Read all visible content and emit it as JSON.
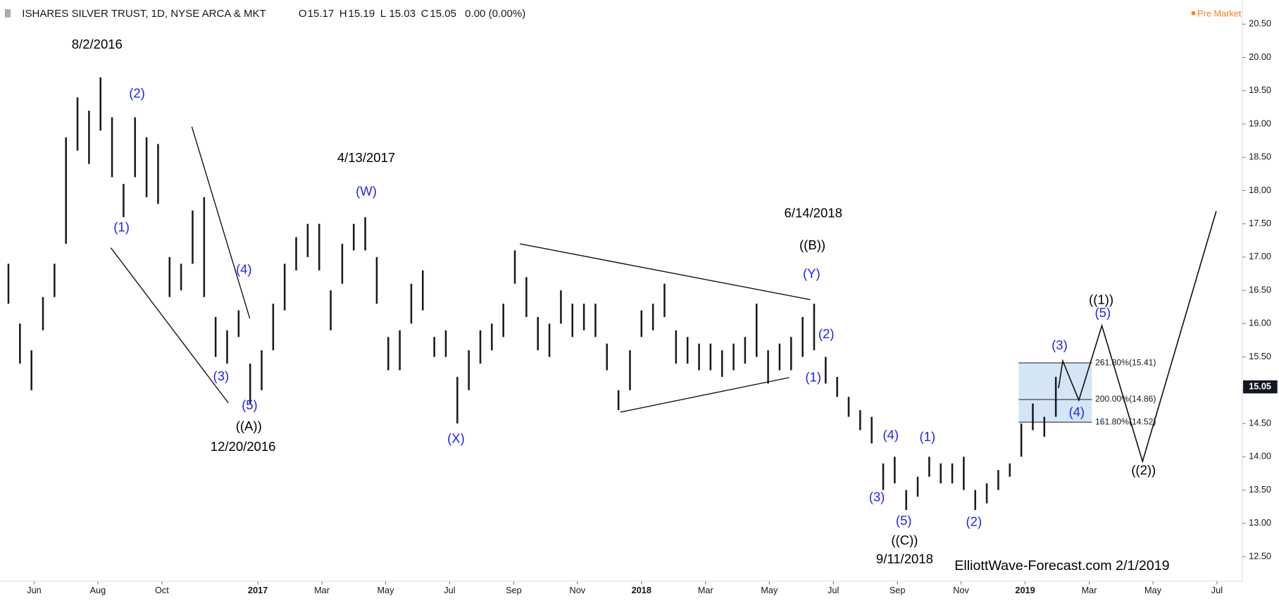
{
  "header": {
    "symbol": "ISHARES SILVER TRUST, 1D, NYSE ARCA & MKT",
    "ohlc": [
      {
        "label": "O",
        "value": 15.17
      },
      {
        "label": "H",
        "value": 15.19
      },
      {
        "label": "L",
        "value": 15.03
      },
      {
        "label": "C",
        "value": 15.05
      }
    ],
    "change": "0.00 (0.00%)",
    "status": "Pre Market"
  },
  "chart_data": {
    "type": "ohlc",
    "color": "#1a1a1a",
    "x": [
      2016.35,
      2016.38,
      2016.41,
      2016.44,
      2016.47,
      2016.5,
      2016.53,
      2016.56,
      2016.59,
      2016.62,
      2016.65,
      2016.68,
      2016.71,
      2016.74,
      2016.77,
      2016.8,
      2016.83,
      2016.86,
      2016.89,
      2016.92,
      2016.95,
      2016.98,
      2017.01,
      2017.04,
      2017.07,
      2017.1,
      2017.13,
      2017.16,
      2017.19,
      2017.22,
      2017.25,
      2017.28,
      2017.31,
      2017.34,
      2017.37,
      2017.4,
      2017.43,
      2017.46,
      2017.49,
      2017.52,
      2017.55,
      2017.58,
      2017.61,
      2017.64,
      2017.67,
      2017.7,
      2017.73,
      2017.76,
      2017.79,
      2017.82,
      2017.85,
      2017.88,
      2017.91,
      2017.94,
      2017.97,
      2018.0,
      2018.03,
      2018.06,
      2018.09,
      2018.12,
      2018.15,
      2018.18,
      2018.21,
      2018.24,
      2018.27,
      2018.3,
      2018.33,
      2018.36,
      2018.39,
      2018.42,
      2018.45,
      2018.48,
      2018.51,
      2018.54,
      2018.57,
      2018.6,
      2018.63,
      2018.66,
      2018.69,
      2018.72,
      2018.75,
      2018.78,
      2018.81,
      2018.84,
      2018.87,
      2018.9,
      2018.93,
      2018.96,
      2018.99,
      2019.02,
      2019.05,
      2019.08
    ],
    "high": [
      16.9,
      16.0,
      15.6,
      16.4,
      16.9,
      18.8,
      19.4,
      19.2,
      19.7,
      19.1,
      18.1,
      19.1,
      18.8,
      18.7,
      17.0,
      16.9,
      17.7,
      17.9,
      16.1,
      15.9,
      16.2,
      15.4,
      15.6,
      16.3,
      16.9,
      17.3,
      17.5,
      17.5,
      16.5,
      17.2,
      17.5,
      17.6,
      17.0,
      15.8,
      15.9,
      16.6,
      16.8,
      15.8,
      15.9,
      15.2,
      15.6,
      15.9,
      16.0,
      16.3,
      17.1,
      16.7,
      16.1,
      16.0,
      16.5,
      16.3,
      16.3,
      16.3,
      15.7,
      15.0,
      15.6,
      16.2,
      16.3,
      16.6,
      15.9,
      15.8,
      15.7,
      15.7,
      15.6,
      15.7,
      15.8,
      16.3,
      15.6,
      15.7,
      15.8,
      16.1,
      16.3,
      15.5,
      15.2,
      14.9,
      14.7,
      14.6,
      13.9,
      14.0,
      13.5,
      13.7,
      14.0,
      13.9,
      13.9,
      14.0,
      13.5,
      13.6,
      13.8,
      13.9,
      14.5,
      14.8,
      14.6,
      15.2
    ],
    "low": [
      16.3,
      15.4,
      15.0,
      15.9,
      16.4,
      17.2,
      18.6,
      18.4,
      18.9,
      18.2,
      17.6,
      18.2,
      17.9,
      17.8,
      16.4,
      16.5,
      16.9,
      16.4,
      15.5,
      15.4,
      15.8,
      14.8,
      15.0,
      15.6,
      16.2,
      16.8,
      17.0,
      16.8,
      15.9,
      16.6,
      17.1,
      17.1,
      16.3,
      15.3,
      15.3,
      16.0,
      16.2,
      15.5,
      15.5,
      14.5,
      15.0,
      15.4,
      15.6,
      15.8,
      16.6,
      16.1,
      15.6,
      15.5,
      16.0,
      15.8,
      15.9,
      15.8,
      15.3,
      14.7,
      15.0,
      15.8,
      15.9,
      16.1,
      15.4,
      15.4,
      15.3,
      15.3,
      15.2,
      15.3,
      15.4,
      15.5,
      15.1,
      15.3,
      15.3,
      15.5,
      15.6,
      15.1,
      14.9,
      14.6,
      14.4,
      14.2,
      13.5,
      13.6,
      13.2,
      13.4,
      13.7,
      13.6,
      13.6,
      13.5,
      13.2,
      13.3,
      13.5,
      13.7,
      14.0,
      14.4,
      14.3,
      14.6
    ],
    "projection": {
      "x": [
        2019.087,
        2019.098,
        2019.14,
        2019.2,
        2019.306,
        2019.498
      ],
      "values": [
        15.03,
        15.44,
        14.85,
        15.97,
        13.93,
        17.69
      ]
    },
    "trendlines": [
      {
        "x": [
          2016.617,
          2016.923
        ],
        "values": [
          17.14,
          14.81
        ]
      },
      {
        "x": [
          2016.828,
          2016.979
        ],
        "values": [
          18.96,
          16.08
        ]
      },
      {
        "x": [
          2017.683,
          2018.44
        ],
        "values": [
          17.2,
          16.36
        ]
      },
      {
        "x": [
          2017.945,
          2018.385
        ],
        "values": [
          14.67,
          15.19
        ]
      }
    ],
    "fib": {
      "x": [
        2018.983,
        2019.174
      ],
      "fill": "#cfe2f5",
      "levels": [
        {
          "value": 15.41,
          "label": "261.80%(15.41)"
        },
        {
          "value": 14.86,
          "label": "200.00%(14.86)"
        },
        {
          "value": 14.52,
          "label": "161.80%(14.52)"
        }
      ]
    },
    "last": 15.05,
    "xlim": [
      2016.328,
      2019.566
    ],
    "ylim": [
      12.13,
      20.86
    ],
    "xticks": [
      {
        "value": 2016.417,
        "label": "Jun"
      },
      {
        "value": 2016.583,
        "label": "Aug"
      },
      {
        "value": 2016.75,
        "label": "Oct"
      },
      {
        "value": 2017,
        "label": "2017"
      },
      {
        "value": 2017.167,
        "label": "Mar"
      },
      {
        "value": 2017.333,
        "label": "May"
      },
      {
        "value": 2017.5,
        "label": "Jul"
      },
      {
        "value": 2017.667,
        "label": "Sep"
      },
      {
        "value": 2017.833,
        "label": "Nov"
      },
      {
        "value": 2018,
        "label": "2018"
      },
      {
        "value": 2018.167,
        "label": "Mar"
      },
      {
        "value": 2018.333,
        "label": "May"
      },
      {
        "value": 2018.5,
        "label": "Jul"
      },
      {
        "value": 2018.667,
        "label": "Sep"
      },
      {
        "value": 2018.833,
        "label": "Nov"
      },
      {
        "value": 2019,
        "label": "2019"
      },
      {
        "value": 2019.167,
        "label": "Mar"
      },
      {
        "value": 2019.333,
        "label": "May"
      },
      {
        "value": 2019.5,
        "label": "Jul"
      }
    ],
    "yticks": [
      {
        "value": 12.5,
        "label": "12.50"
      },
      {
        "value": 13,
        "label": "13.00"
      },
      {
        "value": 13.5,
        "label": "13.50"
      },
      {
        "value": 14,
        "label": "14.00"
      },
      {
        "value": 14.5,
        "label": "14.50"
      },
      {
        "value": 15,
        "label": "15.00"
      },
      {
        "value": 15.5,
        "label": "15.50"
      },
      {
        "value": 16,
        "label": "16.00"
      },
      {
        "value": 16.5,
        "label": "16.50"
      },
      {
        "value": 17,
        "label": "17.00"
      },
      {
        "value": 17.5,
        "label": "17.50"
      },
      {
        "value": 18,
        "label": "18.00"
      },
      {
        "value": 18.5,
        "label": "18.50"
      },
      {
        "value": 19,
        "label": "19.00"
      },
      {
        "value": 19.5,
        "label": "19.50"
      },
      {
        "value": 20,
        "label": "20.00"
      },
      {
        "value": 20.5,
        "label": "20.50"
      }
    ],
    "annotations": [
      {
        "text": "8/2/2016",
        "color": "#000000"
      },
      {
        "text": "(2)",
        "color": "#2222ee"
      },
      {
        "text": "(1)",
        "color": "#2222ee"
      },
      {
        "text": "(4)",
        "color": "#2222ee"
      },
      {
        "text": "(3)",
        "color": "#2222ee"
      },
      {
        "text": "(5)",
        "color": "#2222ee"
      },
      {
        "text": "((A))",
        "color": "#000000"
      },
      {
        "text": "12/20/2016",
        "color": "#000000"
      },
      {
        "text": "4/13/2017",
        "color": "#000000"
      },
      {
        "text": "(W)",
        "color": "#2222ee"
      },
      {
        "text": "(X)",
        "color": "#2222ee"
      },
      {
        "text": "6/14/2018",
        "color": "#000000"
      },
      {
        "text": "((B))",
        "color": "#000000"
      },
      {
        "text": "(Y)",
        "color": "#2222ee"
      },
      {
        "text": "(2)",
        "color": "#2222ee"
      },
      {
        "text": "(1)",
        "color": "#2222ee"
      },
      {
        "text": "(4)",
        "color": "#2222ee"
      },
      {
        "text": "(1)",
        "color": "#2222ee"
      },
      {
        "text": "(3)",
        "color": "#2222ee"
      },
      {
        "text": "(5)",
        "color": "#2222ee"
      },
      {
        "text": "((C))",
        "color": "#000000"
      },
      {
        "text": "9/11/2018",
        "color": "#000000"
      },
      {
        "text": "(2)",
        "color": "#2222ee"
      },
      {
        "text": "(3)",
        "color": "#2222ee"
      },
      {
        "text": "(4)",
        "color": "#2222ee"
      },
      {
        "text": "((1))",
        "color": "#000000"
      },
      {
        "text": "(5)",
        "color": "#2222ee"
      },
      {
        "text": "((2))",
        "color": "#000000"
      },
      {
        "text": "ElliottWave-Forecast.com 2/1/2019",
        "color": "#000000"
      }
    ]
  }
}
